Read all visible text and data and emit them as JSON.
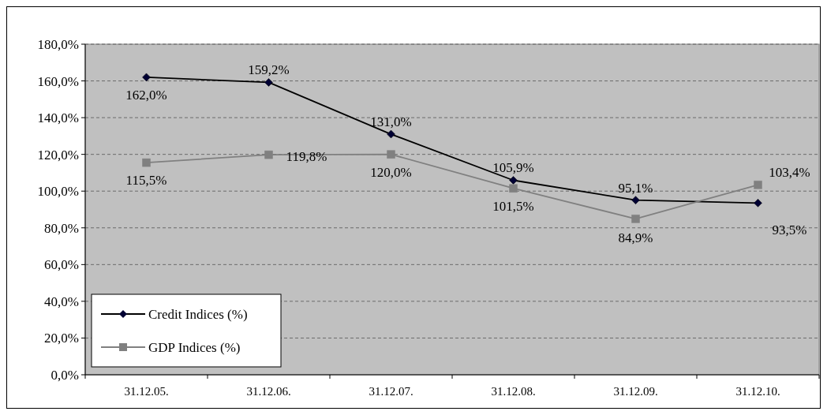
{
  "chart_data": {
    "type": "line",
    "categories": [
      "31.12.05.",
      "31.12.06.",
      "31.12.07.",
      "31.12.08.",
      "31.12.09.",
      "31.12.10."
    ],
    "series": [
      {
        "name": "Credit Indices (%)",
        "color": "#000000",
        "marker": "diamond",
        "values": [
          162.0,
          159.2,
          131.0,
          105.9,
          95.1,
          93.5
        ],
        "value_labels": [
          "162,0%",
          "159,2%",
          "131,0%",
          "105,9%",
          "95,1%",
          "93,5%"
        ]
      },
      {
        "name": "GDP Indices (%)",
        "color": "#808080",
        "marker": "square",
        "values": [
          115.5,
          119.8,
          120.0,
          101.5,
          84.9,
          103.4
        ],
        "value_labels": [
          "115,5%",
          "119,8%",
          "120,0%",
          "101,5%",
          "84,9%",
          "103,4%"
        ]
      }
    ],
    "ylim": [
      0,
      180
    ],
    "yticks": [
      {
        "value": 0,
        "label": "0,0%"
      },
      {
        "value": 20,
        "label": "20,0%"
      },
      {
        "value": 40,
        "label": "40,0%"
      },
      {
        "value": 60,
        "label": "60,0%"
      },
      {
        "value": 80,
        "label": "80,0%"
      },
      {
        "value": 100,
        "label": "100,0%"
      },
      {
        "value": 120,
        "label": "120,0%"
      },
      {
        "value": 140,
        "label": "140,0%"
      },
      {
        "value": 160,
        "label": "160,0%"
      },
      {
        "value": 180,
        "label": "180,0%"
      }
    ],
    "grid": "y",
    "legend": "bottom left",
    "line_style": "solid"
  }
}
